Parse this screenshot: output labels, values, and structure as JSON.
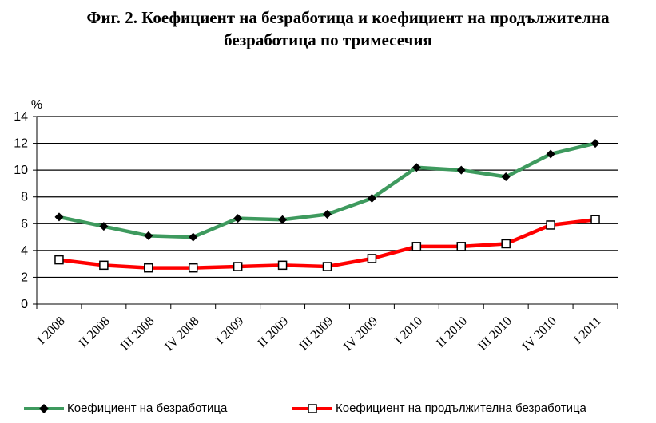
{
  "title_line1": "Фиг. 2. Коефициент на безработица и коефициент на продължителна",
  "title_line2": "безработица по тримесечия",
  "chart_data": {
    "type": "line",
    "ylabel": "%",
    "ylim": [
      0,
      14
    ],
    "yticks": [
      0,
      2,
      4,
      6,
      8,
      10,
      12,
      14
    ],
    "grid": "horizontal",
    "categories": [
      "I 2008",
      "II 2008",
      "III  2008",
      "IV 2008",
      "I 2009",
      "II 2009",
      "III 2009",
      "IV 2009",
      "I 2010",
      "II 2010",
      "III 2010",
      "IV 2010",
      "I 2011"
    ],
    "series": [
      {
        "name": "Коефициент на безработица",
        "color": "#3e9a5e",
        "marker": "diamond",
        "values": [
          6.5,
          5.8,
          5.1,
          5.0,
          6.4,
          6.3,
          6.7,
          7.9,
          10.2,
          10.0,
          9.5,
          11.2,
          12.0
        ]
      },
      {
        "name": "Коефициент на продължителна безработица",
        "color": "#ff0000",
        "marker": "square",
        "values": [
          3.3,
          2.9,
          2.7,
          2.7,
          2.8,
          2.9,
          2.8,
          3.4,
          4.3,
          4.3,
          4.5,
          5.9,
          6.3
        ]
      }
    ],
    "legend_position": "bottom"
  }
}
